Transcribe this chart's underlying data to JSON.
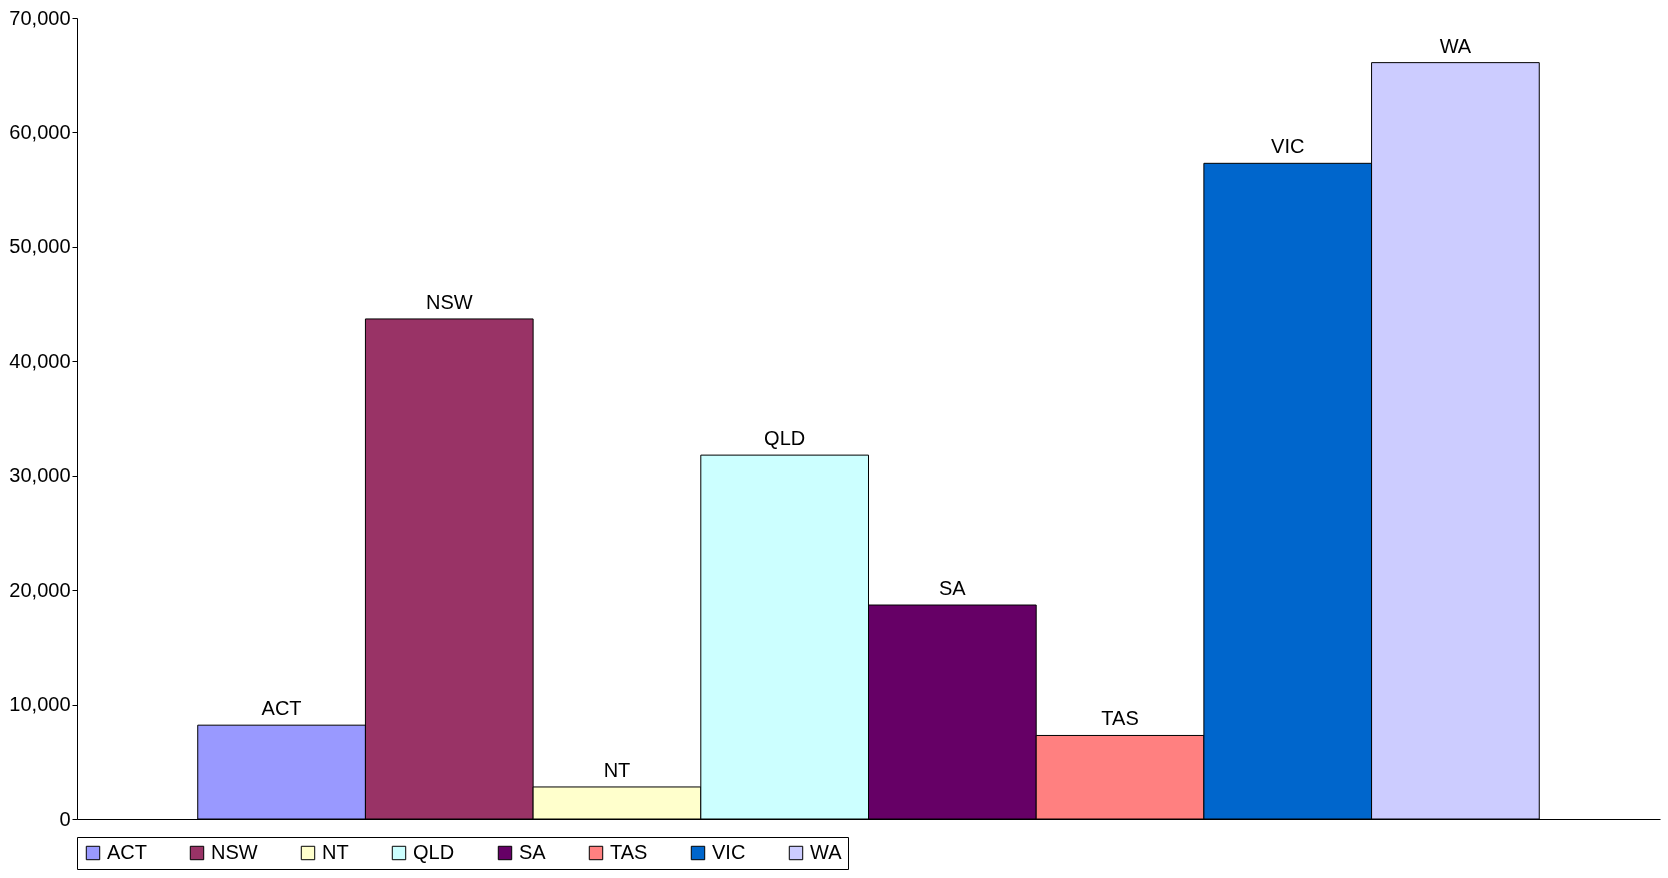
{
  "chart_data": {
    "type": "bar",
    "categories": [
      null
    ],
    "series": [
      {
        "name": "ACT",
        "color": "#9999ff",
        "values": [
          8200
        ]
      },
      {
        "name": "NSW",
        "color": "#993366",
        "values": [
          43700
        ]
      },
      {
        "name": "NT",
        "color": "#ffffcc",
        "values": [
          2800
        ]
      },
      {
        "name": "QLD",
        "color": "#ccffff",
        "values": [
          31800
        ]
      },
      {
        "name": "SA",
        "color": "#660066",
        "values": [
          18700
        ]
      },
      {
        "name": "TAS",
        "color": "#ff8080",
        "values": [
          7300
        ]
      },
      {
        "name": "VIC",
        "color": "#0066cc",
        "values": [
          57300
        ]
      },
      {
        "name": "WA",
        "color": "#ccccff",
        "values": [
          66100
        ]
      }
    ],
    "ylim": [
      0,
      70000
    ],
    "yticks": [
      {
        "value": 0,
        "label": "0"
      },
      {
        "value": 10000,
        "label": "10,000"
      },
      {
        "value": 20000,
        "label": "20,000"
      },
      {
        "value": 30000,
        "label": "30,000"
      },
      {
        "value": 40000,
        "label": "40,000"
      },
      {
        "value": 50000,
        "label": "50,000"
      },
      {
        "value": 60000,
        "label": "60,000"
      },
      {
        "value": 70000,
        "label": "70,000"
      }
    ],
    "grid": false,
    "legend": "bottom",
    "tick_labels": "y"
  }
}
